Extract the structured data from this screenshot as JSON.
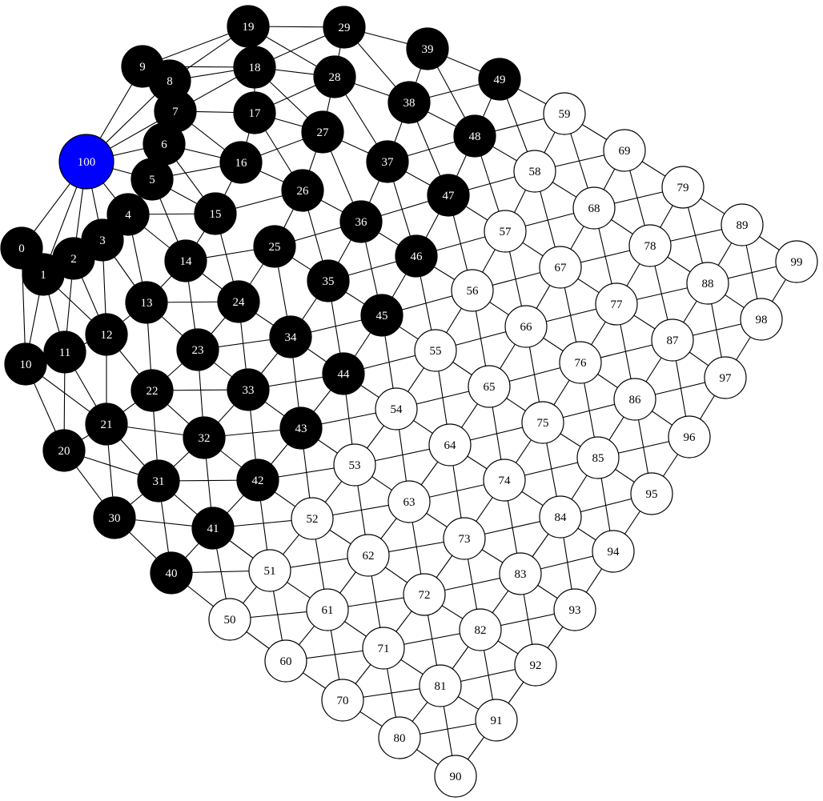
{
  "graph": {
    "colors": {
      "background": "#ffffff",
      "edge": "#000000",
      "active_fill": "#000000",
      "active_text": "#ffffff",
      "inactive_fill": "#ffffff",
      "inactive_text": "#000000",
      "source_fill": "#0000ff",
      "source_text": "#ffffff"
    },
    "source_node": "100",
    "active_nodes": [
      "0",
      "1",
      "2",
      "3",
      "4",
      "5",
      "6",
      "7",
      "8",
      "9",
      "10",
      "11",
      "12",
      "13",
      "14",
      "15",
      "16",
      "17",
      "18",
      "19",
      "20",
      "21",
      "22",
      "23",
      "24",
      "25",
      "26",
      "27",
      "28",
      "29",
      "30",
      "31",
      "32",
      "33",
      "34",
      "35",
      "36",
      "37",
      "38",
      "39",
      "40",
      "41",
      "42",
      "43",
      "44",
      "45",
      "46",
      "47",
      "48",
      "49"
    ],
    "nodes": [
      "0",
      "1",
      "2",
      "3",
      "4",
      "5",
      "6",
      "7",
      "8",
      "9",
      "10",
      "11",
      "12",
      "13",
      "14",
      "15",
      "16",
      "17",
      "18",
      "19",
      "20",
      "21",
      "22",
      "23",
      "24",
      "25",
      "26",
      "27",
      "28",
      "29",
      "30",
      "31",
      "32",
      "33",
      "34",
      "35",
      "36",
      "37",
      "38",
      "39",
      "40",
      "41",
      "42",
      "43",
      "44",
      "45",
      "46",
      "47",
      "48",
      "49",
      "50",
      "51",
      "52",
      "53",
      "54",
      "55",
      "56",
      "57",
      "58",
      "59",
      "60",
      "61",
      "62",
      "63",
      "64",
      "65",
      "66",
      "67",
      "68",
      "69",
      "70",
      "71",
      "72",
      "73",
      "74",
      "75",
      "76",
      "77",
      "78",
      "79",
      "80",
      "81",
      "82",
      "83",
      "84",
      "85",
      "86",
      "87",
      "88",
      "89",
      "90",
      "91",
      "92",
      "93",
      "94",
      "95",
      "96",
      "97",
      "98",
      "99",
      "100"
    ],
    "edges": [
      [
        "0",
        "1"
      ],
      [
        "0",
        "10"
      ],
      [
        "0",
        "100"
      ],
      [
        "1",
        "2"
      ],
      [
        "1",
        "10"
      ],
      [
        "1",
        "11"
      ],
      [
        "1",
        "12"
      ],
      [
        "1",
        "100"
      ],
      [
        "2",
        "3"
      ],
      [
        "2",
        "11"
      ],
      [
        "2",
        "12"
      ],
      [
        "2",
        "100"
      ],
      [
        "3",
        "4"
      ],
      [
        "3",
        "12"
      ],
      [
        "3",
        "13"
      ],
      [
        "3",
        "100"
      ],
      [
        "4",
        "5"
      ],
      [
        "4",
        "13"
      ],
      [
        "4",
        "14"
      ],
      [
        "4",
        "15"
      ],
      [
        "4",
        "100"
      ],
      [
        "5",
        "6"
      ],
      [
        "5",
        "14"
      ],
      [
        "5",
        "15"
      ],
      [
        "5",
        "16"
      ],
      [
        "5",
        "100"
      ],
      [
        "6",
        "7"
      ],
      [
        "6",
        "15"
      ],
      [
        "6",
        "16"
      ],
      [
        "6",
        "100"
      ],
      [
        "7",
        "8"
      ],
      [
        "7",
        "16"
      ],
      [
        "7",
        "17"
      ],
      [
        "7",
        "18"
      ],
      [
        "7",
        "100"
      ],
      [
        "8",
        "9"
      ],
      [
        "8",
        "18"
      ],
      [
        "8",
        "19"
      ],
      [
        "8",
        "100"
      ],
      [
        "9",
        "18"
      ],
      [
        "9",
        "19"
      ],
      [
        "9",
        "100"
      ],
      [
        "10",
        "11"
      ],
      [
        "10",
        "20"
      ],
      [
        "10",
        "21"
      ],
      [
        "11",
        "12"
      ],
      [
        "11",
        "20"
      ],
      [
        "11",
        "21"
      ],
      [
        "12",
        "13"
      ],
      [
        "12",
        "21"
      ],
      [
        "12",
        "22"
      ],
      [
        "13",
        "14"
      ],
      [
        "13",
        "22"
      ],
      [
        "13",
        "23"
      ],
      [
        "13",
        "24"
      ],
      [
        "14",
        "15"
      ],
      [
        "14",
        "23"
      ],
      [
        "14",
        "24"
      ],
      [
        "14",
        "25"
      ],
      [
        "15",
        "16"
      ],
      [
        "15",
        "24"
      ],
      [
        "15",
        "26"
      ],
      [
        "16",
        "17"
      ],
      [
        "16",
        "26"
      ],
      [
        "16",
        "27"
      ],
      [
        "17",
        "18"
      ],
      [
        "17",
        "26"
      ],
      [
        "17",
        "27"
      ],
      [
        "17",
        "28"
      ],
      [
        "18",
        "19"
      ],
      [
        "18",
        "27"
      ],
      [
        "18",
        "28"
      ],
      [
        "18",
        "29"
      ],
      [
        "19",
        "28"
      ],
      [
        "19",
        "29"
      ],
      [
        "20",
        "21"
      ],
      [
        "20",
        "30"
      ],
      [
        "20",
        "31"
      ],
      [
        "21",
        "22"
      ],
      [
        "21",
        "30"
      ],
      [
        "21",
        "31"
      ],
      [
        "21",
        "32"
      ],
      [
        "22",
        "23"
      ],
      [
        "22",
        "31"
      ],
      [
        "22",
        "32"
      ],
      [
        "22",
        "33"
      ],
      [
        "23",
        "24"
      ],
      [
        "23",
        "32"
      ],
      [
        "23",
        "33"
      ],
      [
        "23",
        "34"
      ],
      [
        "24",
        "25"
      ],
      [
        "24",
        "33"
      ],
      [
        "24",
        "34"
      ],
      [
        "25",
        "26"
      ],
      [
        "25",
        "34"
      ],
      [
        "25",
        "35"
      ],
      [
        "25",
        "36"
      ],
      [
        "26",
        "27"
      ],
      [
        "26",
        "35"
      ],
      [
        "26",
        "36"
      ],
      [
        "27",
        "28"
      ],
      [
        "27",
        "36"
      ],
      [
        "27",
        "37"
      ],
      [
        "28",
        "29"
      ],
      [
        "28",
        "37"
      ],
      [
        "28",
        "38"
      ],
      [
        "29",
        "38"
      ],
      [
        "29",
        "39"
      ],
      [
        "30",
        "31"
      ],
      [
        "30",
        "40"
      ],
      [
        "30",
        "41"
      ],
      [
        "31",
        "32"
      ],
      [
        "31",
        "40"
      ],
      [
        "31",
        "41"
      ],
      [
        "31",
        "42"
      ],
      [
        "32",
        "33"
      ],
      [
        "32",
        "41"
      ],
      [
        "32",
        "42"
      ],
      [
        "32",
        "43"
      ],
      [
        "33",
        "34"
      ],
      [
        "33",
        "42"
      ],
      [
        "33",
        "43"
      ],
      [
        "33",
        "44"
      ],
      [
        "34",
        "35"
      ],
      [
        "34",
        "43"
      ],
      [
        "34",
        "44"
      ],
      [
        "34",
        "45"
      ],
      [
        "35",
        "36"
      ],
      [
        "35",
        "44"
      ],
      [
        "35",
        "45"
      ],
      [
        "35",
        "46"
      ],
      [
        "36",
        "37"
      ],
      [
        "36",
        "45"
      ],
      [
        "36",
        "46"
      ],
      [
        "36",
        "47"
      ],
      [
        "37",
        "38"
      ],
      [
        "37",
        "46"
      ],
      [
        "37",
        "47"
      ],
      [
        "37",
        "48"
      ],
      [
        "38",
        "39"
      ],
      [
        "38",
        "47"
      ],
      [
        "38",
        "48"
      ],
      [
        "38",
        "49"
      ],
      [
        "39",
        "48"
      ],
      [
        "39",
        "49"
      ],
      [
        "40",
        "41"
      ],
      [
        "40",
        "50"
      ],
      [
        "40",
        "51"
      ],
      [
        "41",
        "42"
      ],
      [
        "41",
        "50"
      ],
      [
        "41",
        "51"
      ],
      [
        "41",
        "52"
      ],
      [
        "42",
        "43"
      ],
      [
        "42",
        "51"
      ],
      [
        "42",
        "52"
      ],
      [
        "42",
        "53"
      ],
      [
        "43",
        "44"
      ],
      [
        "43",
        "52"
      ],
      [
        "43",
        "53"
      ],
      [
        "43",
        "54"
      ],
      [
        "44",
        "45"
      ],
      [
        "44",
        "53"
      ],
      [
        "44",
        "54"
      ],
      [
        "44",
        "55"
      ],
      [
        "45",
        "46"
      ],
      [
        "45",
        "54"
      ],
      [
        "45",
        "55"
      ],
      [
        "45",
        "56"
      ],
      [
        "46",
        "47"
      ],
      [
        "46",
        "55"
      ],
      [
        "46",
        "56"
      ],
      [
        "46",
        "57"
      ],
      [
        "47",
        "48"
      ],
      [
        "47",
        "56"
      ],
      [
        "47",
        "57"
      ],
      [
        "47",
        "58"
      ],
      [
        "48",
        "49"
      ],
      [
        "48",
        "57"
      ],
      [
        "48",
        "58"
      ],
      [
        "48",
        "59"
      ],
      [
        "49",
        "58"
      ],
      [
        "49",
        "59"
      ],
      [
        "50",
        "51"
      ],
      [
        "50",
        "60"
      ],
      [
        "50",
        "61"
      ],
      [
        "51",
        "52"
      ],
      [
        "51",
        "60"
      ],
      [
        "51",
        "61"
      ],
      [
        "51",
        "62"
      ],
      [
        "52",
        "53"
      ],
      [
        "52",
        "61"
      ],
      [
        "52",
        "62"
      ],
      [
        "52",
        "63"
      ],
      [
        "53",
        "54"
      ],
      [
        "53",
        "62"
      ],
      [
        "53",
        "63"
      ],
      [
        "53",
        "64"
      ],
      [
        "54",
        "55"
      ],
      [
        "54",
        "63"
      ],
      [
        "54",
        "64"
      ],
      [
        "54",
        "65"
      ],
      [
        "55",
        "56"
      ],
      [
        "55",
        "64"
      ],
      [
        "55",
        "65"
      ],
      [
        "55",
        "66"
      ],
      [
        "56",
        "57"
      ],
      [
        "56",
        "65"
      ],
      [
        "56",
        "66"
      ],
      [
        "56",
        "67"
      ],
      [
        "57",
        "58"
      ],
      [
        "57",
        "66"
      ],
      [
        "57",
        "67"
      ],
      [
        "57",
        "68"
      ],
      [
        "58",
        "59"
      ],
      [
        "58",
        "67"
      ],
      [
        "58",
        "68"
      ],
      [
        "58",
        "69"
      ],
      [
        "59",
        "68"
      ],
      [
        "59",
        "69"
      ],
      [
        "60",
        "61"
      ],
      [
        "60",
        "70"
      ],
      [
        "60",
        "71"
      ],
      [
        "61",
        "62"
      ],
      [
        "61",
        "70"
      ],
      [
        "61",
        "71"
      ],
      [
        "61",
        "72"
      ],
      [
        "62",
        "63"
      ],
      [
        "62",
        "71"
      ],
      [
        "62",
        "72"
      ],
      [
        "62",
        "73"
      ],
      [
        "63",
        "64"
      ],
      [
        "63",
        "72"
      ],
      [
        "63",
        "73"
      ],
      [
        "63",
        "74"
      ],
      [
        "64",
        "65"
      ],
      [
        "64",
        "73"
      ],
      [
        "64",
        "74"
      ],
      [
        "64",
        "75"
      ],
      [
        "65",
        "66"
      ],
      [
        "65",
        "74"
      ],
      [
        "65",
        "75"
      ],
      [
        "65",
        "76"
      ],
      [
        "66",
        "67"
      ],
      [
        "66",
        "75"
      ],
      [
        "66",
        "76"
      ],
      [
        "66",
        "77"
      ],
      [
        "67",
        "68"
      ],
      [
        "67",
        "76"
      ],
      [
        "67",
        "77"
      ],
      [
        "67",
        "78"
      ],
      [
        "68",
        "69"
      ],
      [
        "68",
        "77"
      ],
      [
        "68",
        "78"
      ],
      [
        "68",
        "79"
      ],
      [
        "69",
        "78"
      ],
      [
        "69",
        "79"
      ],
      [
        "70",
        "71"
      ],
      [
        "70",
        "80"
      ],
      [
        "70",
        "81"
      ],
      [
        "71",
        "72"
      ],
      [
        "71",
        "80"
      ],
      [
        "71",
        "81"
      ],
      [
        "71",
        "82"
      ],
      [
        "72",
        "73"
      ],
      [
        "72",
        "81"
      ],
      [
        "72",
        "82"
      ],
      [
        "72",
        "83"
      ],
      [
        "73",
        "74"
      ],
      [
        "73",
        "82"
      ],
      [
        "73",
        "83"
      ],
      [
        "73",
        "84"
      ],
      [
        "74",
        "75"
      ],
      [
        "74",
        "83"
      ],
      [
        "74",
        "84"
      ],
      [
        "74",
        "85"
      ],
      [
        "75",
        "76"
      ],
      [
        "75",
        "84"
      ],
      [
        "75",
        "85"
      ],
      [
        "75",
        "86"
      ],
      [
        "76",
        "77"
      ],
      [
        "76",
        "85"
      ],
      [
        "76",
        "86"
      ],
      [
        "76",
        "87"
      ],
      [
        "77",
        "78"
      ],
      [
        "77",
        "86"
      ],
      [
        "77",
        "87"
      ],
      [
        "77",
        "88"
      ],
      [
        "78",
        "79"
      ],
      [
        "78",
        "87"
      ],
      [
        "78",
        "88"
      ],
      [
        "78",
        "89"
      ],
      [
        "79",
        "88"
      ],
      [
        "79",
        "89"
      ],
      [
        "80",
        "81"
      ],
      [
        "80",
        "90"
      ],
      [
        "80",
        "91"
      ],
      [
        "81",
        "82"
      ],
      [
        "81",
        "90"
      ],
      [
        "81",
        "91"
      ],
      [
        "81",
        "92"
      ],
      [
        "82",
        "83"
      ],
      [
        "82",
        "91"
      ],
      [
        "82",
        "92"
      ],
      [
        "82",
        "93"
      ],
      [
        "83",
        "84"
      ],
      [
        "83",
        "92"
      ],
      [
        "83",
        "93"
      ],
      [
        "83",
        "94"
      ],
      [
        "84",
        "85"
      ],
      [
        "84",
        "93"
      ],
      [
        "84",
        "94"
      ],
      [
        "84",
        "95"
      ],
      [
        "85",
        "86"
      ],
      [
        "85",
        "94"
      ],
      [
        "85",
        "95"
      ],
      [
        "85",
        "96"
      ],
      [
        "86",
        "87"
      ],
      [
        "86",
        "95"
      ],
      [
        "86",
        "96"
      ],
      [
        "86",
        "97"
      ],
      [
        "87",
        "88"
      ],
      [
        "87",
        "96"
      ],
      [
        "87",
        "97"
      ],
      [
        "87",
        "98"
      ],
      [
        "88",
        "89"
      ],
      [
        "88",
        "97"
      ],
      [
        "88",
        "98"
      ],
      [
        "88",
        "99"
      ],
      [
        "89",
        "98"
      ],
      [
        "89",
        "99"
      ],
      [
        "90",
        "91"
      ],
      [
        "91",
        "92"
      ],
      [
        "92",
        "93"
      ],
      [
        "93",
        "94"
      ],
      [
        "94",
        "95"
      ],
      [
        "95",
        "96"
      ],
      [
        "96",
        "97"
      ],
      [
        "97",
        "98"
      ],
      [
        "98",
        "99"
      ]
    ]
  }
}
